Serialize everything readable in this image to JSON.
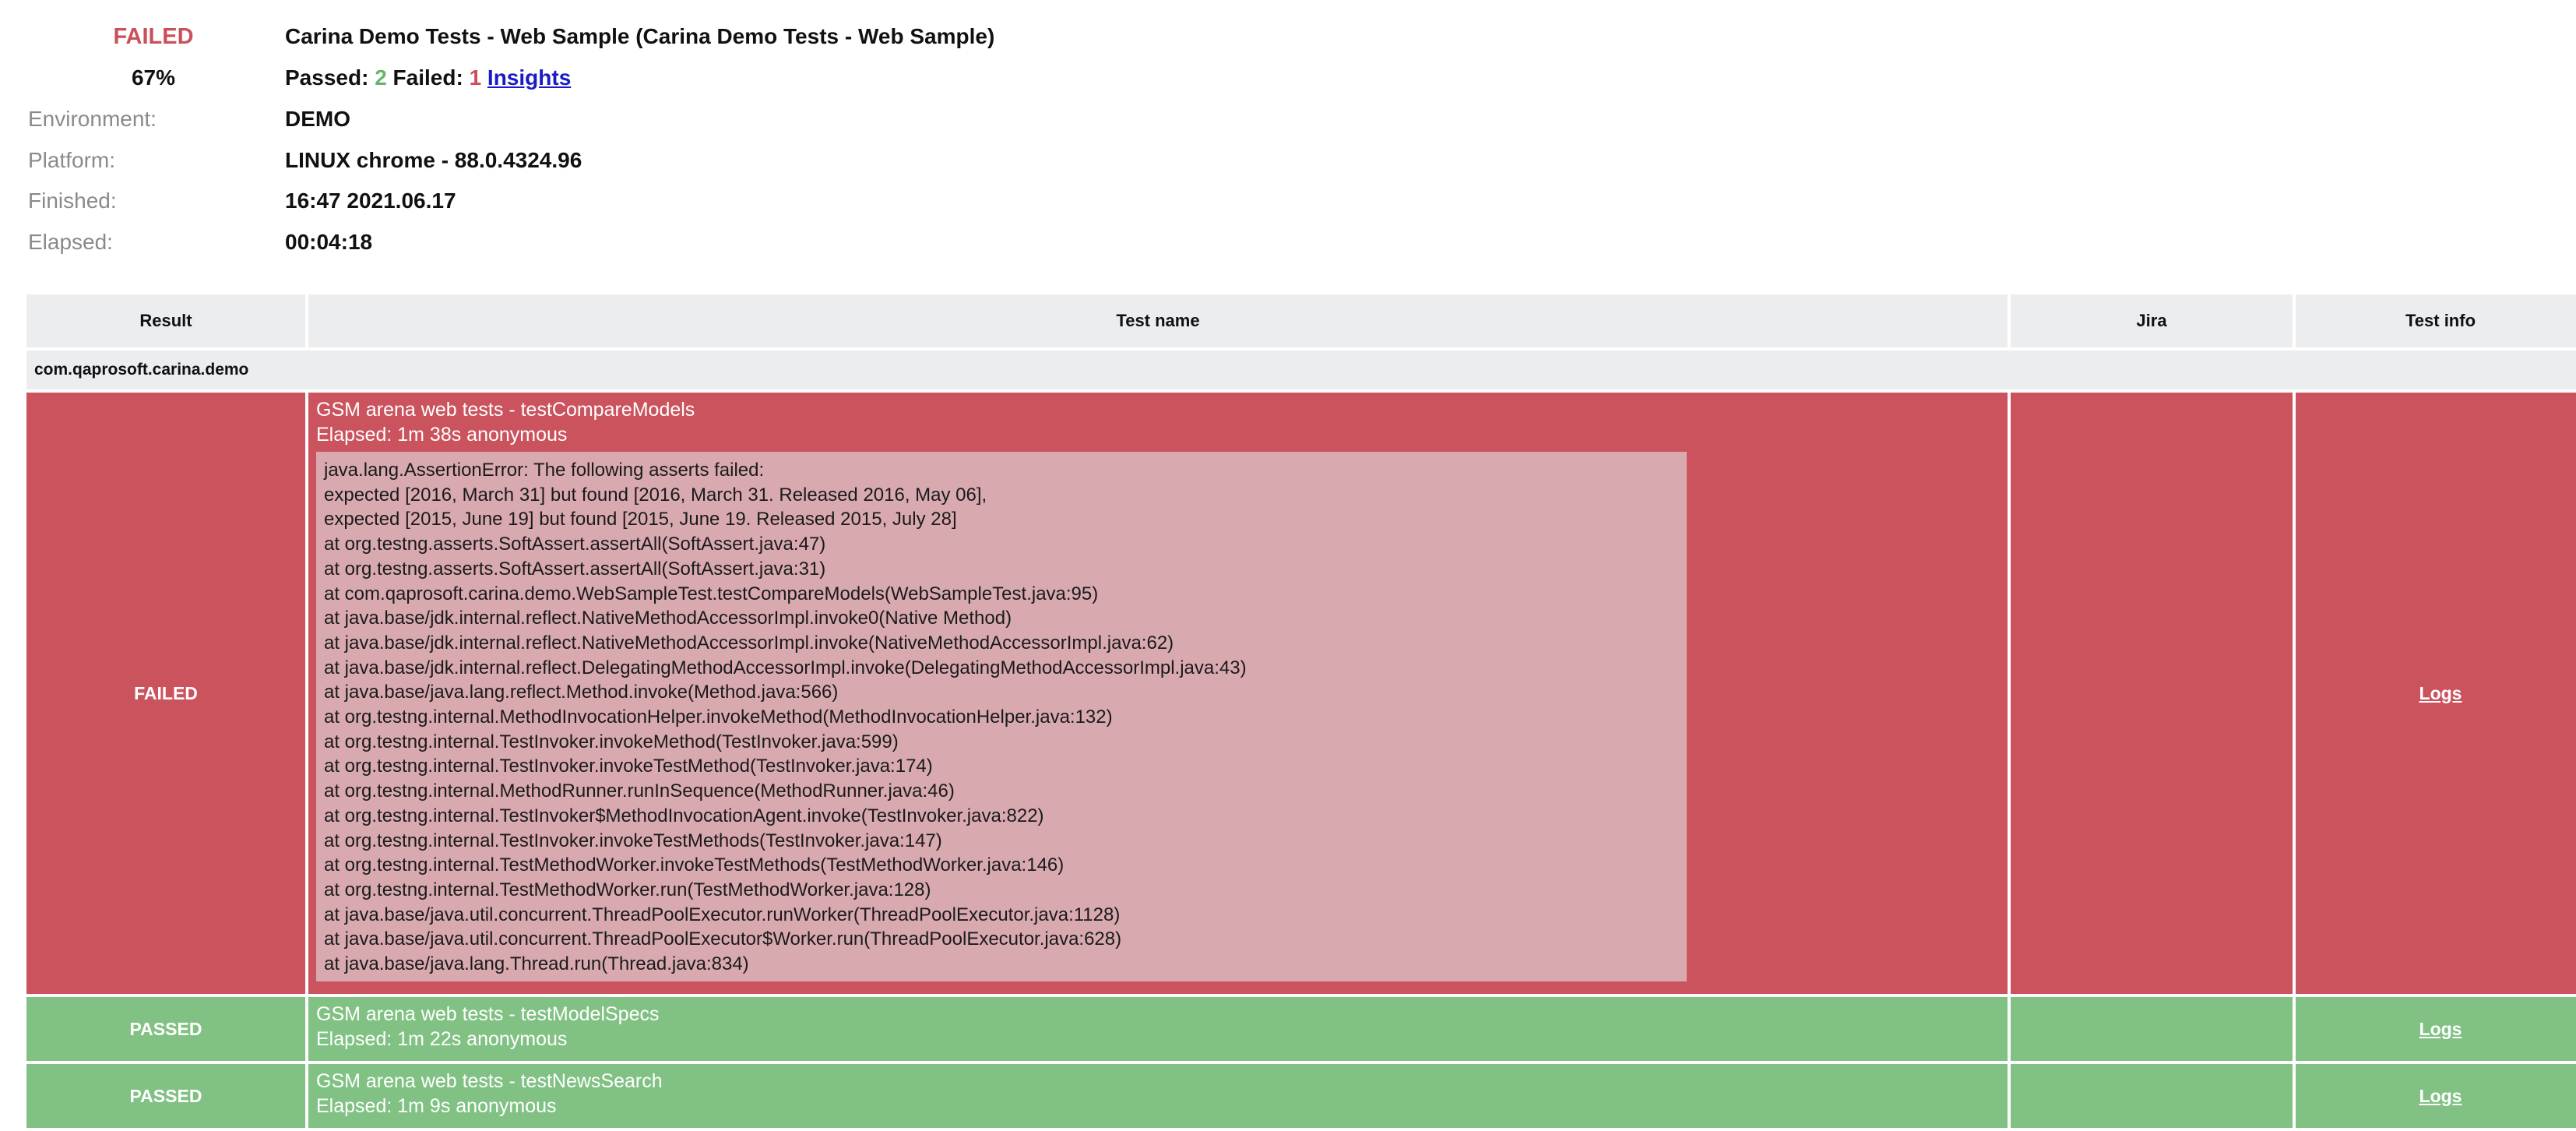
{
  "summary": {
    "status": "FAILED",
    "title": "Carina Demo Tests - Web Sample (Carina Demo Tests - Web Sample)",
    "percent": "67%",
    "passed_label": "Passed:",
    "passed_count": "2",
    "failed_label": "Failed:",
    "failed_count": "1",
    "insights_label": "Insights",
    "rows": [
      {
        "label": "Environment:",
        "value": "DEMO"
      },
      {
        "label": "Platform:",
        "value": "LINUX chrome - 88.0.4324.96"
      },
      {
        "label": "Finished:",
        "value": "16:47 2021.06.17"
      },
      {
        "label": "Elapsed:",
        "value": "00:04:18"
      }
    ]
  },
  "colors": {
    "failed": "#cb535d",
    "passed": "#81c284",
    "stack_bg": "#d9a9b0",
    "header_bg": "#ecedef",
    "link": "#1a1ac8"
  },
  "table": {
    "headers": {
      "result": "Result",
      "test_name": "Test name",
      "jira": "Jira",
      "test_info": "Test info"
    },
    "group": "com.qaprosoft.carina.demo",
    "rows": [
      {
        "result": "FAILED",
        "name": "GSM arena web tests - testCompareModels",
        "elapsed": "Elapsed: 1m 38s anonymous",
        "logs": "Logs",
        "stack": [
          "java.lang.AssertionError: The following asserts failed:",
          "expected [2016, March 31] but found [2016, March 31. Released 2016, May 06],",
          "expected [2015, June 19] but found [2015, June 19. Released 2015, July 28]",
          "at org.testng.asserts.SoftAssert.assertAll(SoftAssert.java:47)",
          "at org.testng.asserts.SoftAssert.assertAll(SoftAssert.java:31)",
          "at com.qaprosoft.carina.demo.WebSampleTest.testCompareModels(WebSampleTest.java:95)",
          "at java.base/jdk.internal.reflect.NativeMethodAccessorImpl.invoke0(Native Method)",
          "at java.base/jdk.internal.reflect.NativeMethodAccessorImpl.invoke(NativeMethodAccessorImpl.java:62)",
          "at java.base/jdk.internal.reflect.DelegatingMethodAccessorImpl.invoke(DelegatingMethodAccessorImpl.java:43)",
          "at java.base/java.lang.reflect.Method.invoke(Method.java:566)",
          "at org.testng.internal.MethodInvocationHelper.invokeMethod(MethodInvocationHelper.java:132)",
          "at org.testng.internal.TestInvoker.invokeMethod(TestInvoker.java:599)",
          "at org.testng.internal.TestInvoker.invokeTestMethod(TestInvoker.java:174)",
          "at org.testng.internal.MethodRunner.runInSequence(MethodRunner.java:46)",
          "at org.testng.internal.TestInvoker$MethodInvocationAgent.invoke(TestInvoker.java:822)",
          "at org.testng.internal.TestInvoker.invokeTestMethods(TestInvoker.java:147)",
          "at org.testng.internal.TestMethodWorker.invokeTestMethods(TestMethodWorker.java:146)",
          "at org.testng.internal.TestMethodWorker.run(TestMethodWorker.java:128)",
          "at java.base/java.util.concurrent.ThreadPoolExecutor.runWorker(ThreadPoolExecutor.java:1128)",
          "at java.base/java.util.concurrent.ThreadPoolExecutor$Worker.run(ThreadPoolExecutor.java:628)",
          "at java.base/java.lang.Thread.run(Thread.java:834)"
        ]
      },
      {
        "result": "PASSED",
        "name": "GSM arena web tests - testModelSpecs",
        "elapsed": "Elapsed: 1m 22s anonymous",
        "logs": "Logs"
      },
      {
        "result": "PASSED",
        "name": "GSM arena web tests - testNewsSearch",
        "elapsed": "Elapsed: 1m 9s anonymous",
        "logs": "Logs"
      }
    ]
  }
}
